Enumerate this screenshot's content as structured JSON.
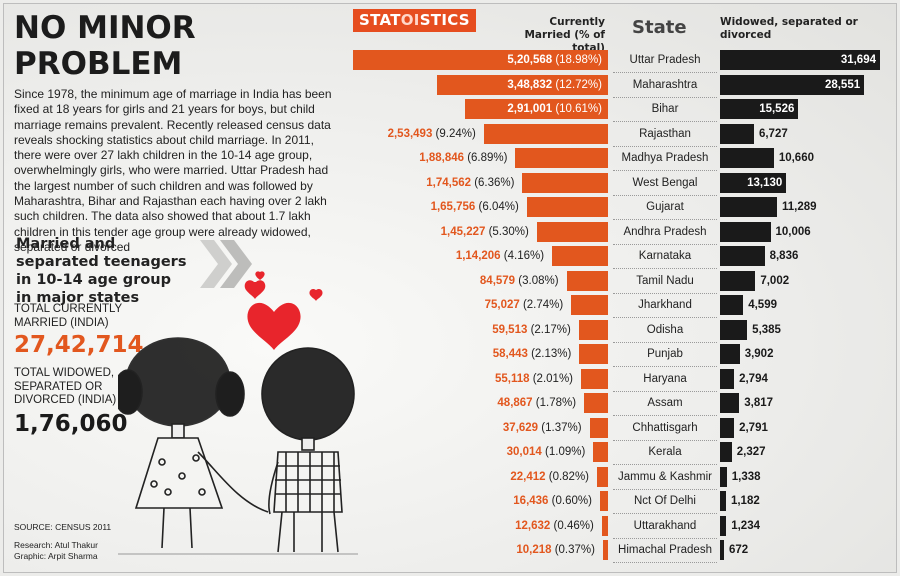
{
  "headline": "NO MINOR PROBLEM",
  "intro": "Since 1978, the minimum age of marriage in India has been fixed at 18 years for girls and 21 years for boys, but child marriage remains prevalent. Recently released census data reveals shocking statistics about child marriage. In 2011, there were over 27 lakh children in the 10-14 age group, overwhelmingly girls, who were married. Uttar Pradesh had the largest number of such children and was followed by Maharashtra, Bihar and Rajasthan each having over 2 lakh such children. The data also showed that about 1.7 lakh children in this tender age group were already widowed, separated or divorced",
  "subheading": "Married and separated teenagers in 10-14 age group in major states",
  "totals": {
    "married_label": "TOTAL CURRENTLY MARRIED (INDIA)",
    "married_value": "27,42,714",
    "widowed_label": "TOTAL WIDOWED, SEPARATED OR DIVORCED (INDIA)",
    "widowed_value": "1,76,060"
  },
  "source": "SOURCE: CENSUS 2011",
  "research": "Research: Atul Thakur",
  "graphic": "Graphic: Arpit Sharma",
  "logo": {
    "pre": "STAT",
    "mid": "OI",
    "post": "STICS"
  },
  "colors": {
    "married_bar": "#e2571e",
    "widowed_bar": "#1a1a1a",
    "heart": "#e8252c",
    "logo_bg": "#e64d1f"
  },
  "chart_data": {
    "type": "bar",
    "title": "Married and separated teenagers in 10-14 age group in major states",
    "categories": [
      "Uttar Pradesh",
      "Maharashtra",
      "Bihar",
      "Rajasthan",
      "Madhya Pradesh",
      "West Bengal",
      "Gujarat",
      "Andhra Pradesh",
      "Karnataka",
      "Tamil Nadu",
      "Jharkhand",
      "Odisha",
      "Punjab",
      "Haryana",
      "Assam",
      "Chhattisgarh",
      "Kerala",
      "Jammu & Kashmir",
      "Nct Of Delhi",
      "Uttarakhand",
      "Himachal Pradesh"
    ],
    "category_header": "State",
    "series": [
      {
        "name": "Currently Married (% of total)",
        "values": [
          520568,
          348832,
          291001,
          253493,
          188846,
          174562,
          165756,
          145227,
          114206,
          84579,
          75027,
          59513,
          58443,
          55118,
          48867,
          37629,
          30014,
          22412,
          16436,
          12632,
          10218
        ],
        "labels": [
          "5,20,568",
          "3,48,832",
          "2,91,001",
          "2,53,493",
          "1,88,846",
          "1,74,562",
          "1,65,756",
          "1,45,227",
          "1,14,206",
          "84,579",
          "75,027",
          "59,513",
          "58,443",
          "55,118",
          "48,867",
          "37,629",
          "30,014",
          "22,412",
          "16,436",
          "12,632",
          "10,218"
        ],
        "percent_labels": [
          "(18.98%)",
          "(12.72%)",
          "(10.61%)",
          "(9.24%)",
          "(6.89%)",
          "(6.36%)",
          "(6.04%)",
          "(5.30%)",
          "(4.16%)",
          "(3.08%)",
          "(2.74%)",
          "(2.17%)",
          "(2.13%)",
          "(2.01%)",
          "(1.78%)",
          "(1.37%)",
          "(1.09%)",
          "(0.82%)",
          "(0.60%)",
          "(0.46%)",
          "(0.37%)"
        ]
      },
      {
        "name": "Widowed, separated or divorced",
        "values": [
          31694,
          28551,
          15526,
          6727,
          10660,
          13130,
          11289,
          10006,
          8836,
          7002,
          4599,
          5385,
          3902,
          2794,
          3817,
          2791,
          2327,
          1338,
          1182,
          1234,
          672
        ],
        "labels": [
          "31,694",
          "28,551",
          "15,526",
          "6,727",
          "10,660",
          "13,130",
          "11,289",
          "10,006",
          "8,836",
          "7,002",
          "4,599",
          "5,385",
          "3,902",
          "2,794",
          "3,817",
          "2,791",
          "2,327",
          "1,338",
          "1,182",
          "1,234",
          "672"
        ]
      }
    ]
  }
}
